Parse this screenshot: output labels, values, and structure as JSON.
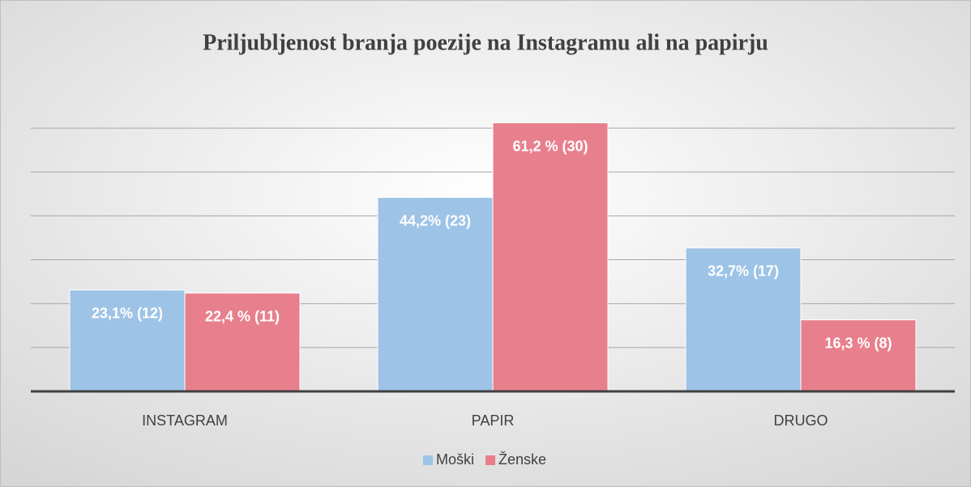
{
  "chart_data": {
    "type": "bar",
    "title": "Priljubljenost branja poezije na Instagramu ali na papirju",
    "categories": [
      "INSTAGRAM",
      "PAPIR",
      "DRUGO"
    ],
    "series": [
      {
        "name": "Moški",
        "color": "#9dc3e6",
        "values": [
          23.1,
          44.2,
          32.7
        ],
        "value_labels": [
          "23,1% (12)",
          "44,2% (23)",
          "32,7% (17)"
        ]
      },
      {
        "name": "Ženske",
        "color": "#e87f8c",
        "values": [
          22.4,
          61.2,
          16.3
        ],
        "value_labels": [
          "22,4 % (11)",
          "61,2 % (30)",
          "16,3 % (8)"
        ]
      }
    ],
    "ylim": [
      0,
      65
    ],
    "yticks": [
      0,
      10,
      20,
      30,
      40,
      50,
      60
    ],
    "grid": true,
    "legend": "bottom"
  }
}
